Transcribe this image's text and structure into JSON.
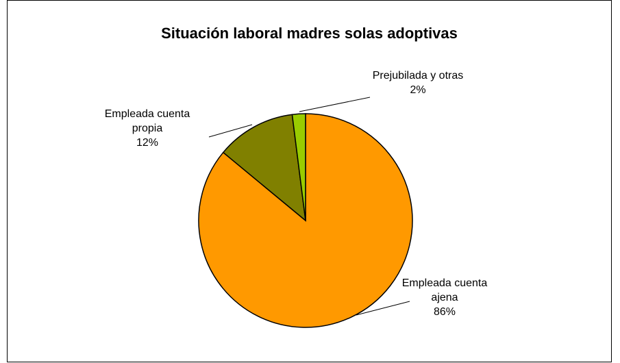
{
  "chart_data": {
    "type": "pie",
    "title": "Situación laboral madres solas adoptivas",
    "categories": [
      "Empleada cuenta ajena",
      "Empleada cuenta propia",
      "Prejubilada y otras"
    ],
    "values": [
      86,
      12,
      2
    ],
    "value_labels": [
      "86%",
      "12%",
      "2%"
    ],
    "colors": [
      "#ff9900",
      "#808000",
      "#99cc00"
    ]
  }
}
